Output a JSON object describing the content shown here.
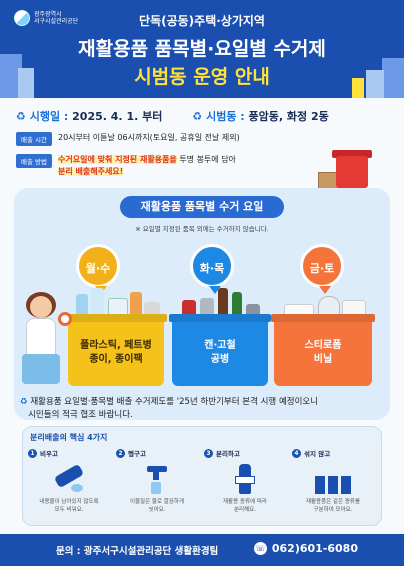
{
  "header": {
    "org_name_line1": "광주광역시",
    "org_name_line2": "서구시설관리공단",
    "subtitle": "단독(공동)주택·상가지역",
    "title_line1": "재활용품 품목별·요일별 수거제",
    "title_line2": "시범동 운영 안내"
  },
  "info": {
    "start_label": "시행일 :",
    "start_value": "2025. 4. 1. 부터",
    "area_label": "시범동 :",
    "area_value": "풍암동, 화정 2동",
    "time_tag": "배출 시간",
    "time_text": "20시부터 이튿날 06시까지(토요일, 공휴일 전날 제외)",
    "method_tag": "배출 방법",
    "method_highlight": "수거요일에 맞춰 지정된 재활용품을",
    "method_text": "투명 봉투에 담아",
    "method_text2": "분리 배출해주세요!"
  },
  "panel": {
    "title": "재활용품 품목별 수거 요일",
    "note": "※ 요일별 지정된 품목 외에는 수거하지 않습니다.",
    "days": [
      "월·수",
      "화·목",
      "금·토"
    ],
    "bins": [
      {
        "line1": "플라스틱, 페트병",
        "line2": "종이, 종이팩"
      },
      {
        "line1": "캔·고철",
        "line2": "공병"
      },
      {
        "line1": "스티로폼",
        "line2": "비닐"
      }
    ]
  },
  "notice": {
    "line1": "재활용품 요일별·품목별 배출 수거제도를 '25년 하반기부터 본격 시행 예정이오니",
    "line2": "시민들의 적극 협조 바랍니다."
  },
  "tips": {
    "title": "분리배출의 핵심 4가지",
    "items": [
      {
        "num": "1",
        "label": "비우고",
        "desc1": "내용물이 남아있지 않도록",
        "desc2": "모두 비워요."
      },
      {
        "num": "2",
        "label": "헹구고",
        "desc1": "이물질은 물로 깔끔하게",
        "desc2": "씻어요."
      },
      {
        "num": "3",
        "label": "분리하고",
        "desc1": "재활용 종류에 따라",
        "desc2": "분리해요."
      },
      {
        "num": "4",
        "label": "섞지 않고",
        "desc1": "재활용품은 같은 종류를",
        "desc2": "구분하여 모아요."
      }
    ]
  },
  "footer": {
    "contact": "문의 : 광주서구시설관리공단 생활환경팀",
    "phone": "062)601-6080"
  },
  "colors": {
    "primary": "#1a4fb0",
    "accent_yellow": "#ffe13a",
    "bin_yellow": "#f4c21a",
    "bin_blue": "#1e88e5",
    "bin_orange": "#f4743b"
  }
}
